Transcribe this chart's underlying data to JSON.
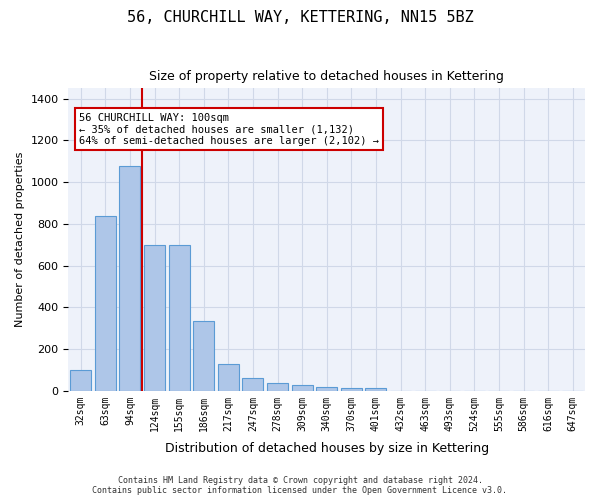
{
  "title": "56, CHURCHILL WAY, KETTERING, NN15 5BZ",
  "subtitle": "Size of property relative to detached houses in Kettering",
  "xlabel": "Distribution of detached houses by size in Kettering",
  "ylabel": "Number of detached properties",
  "bar_color": "#aec6e8",
  "bar_edge_color": "#5b9bd5",
  "grid_color": "#d0d8e8",
  "background_color": "#eef2fa",
  "categories": [
    "32sqm",
    "63sqm",
    "94sqm",
    "124sqm",
    "155sqm",
    "186sqm",
    "217sqm",
    "247sqm",
    "278sqm",
    "309sqm",
    "340sqm",
    "370sqm",
    "401sqm",
    "432sqm",
    "463sqm",
    "493sqm",
    "524sqm",
    "555sqm",
    "586sqm",
    "616sqm",
    "647sqm"
  ],
  "bar_values": [
    100,
    840,
    1080,
    698,
    698,
    335,
    130,
    60,
    35,
    30,
    20,
    15,
    15,
    0,
    0,
    0,
    0,
    0,
    0,
    0,
    0
  ],
  "ylim": [
    0,
    1450
  ],
  "yticks": [
    0,
    200,
    400,
    600,
    800,
    1000,
    1200,
    1400
  ],
  "property_size": "100sqm",
  "property_bin_index": 2,
  "vline_color": "#cc0000",
  "annotation_text": "56 CHURCHILL WAY: 100sqm\n← 35% of detached houses are smaller (1,132)\n64% of semi-detached houses are larger (2,102) →",
  "annotation_box_color": "#cc0000",
  "footer_line1": "Contains HM Land Registry data © Crown copyright and database right 2024.",
  "footer_line2": "Contains public sector information licensed under the Open Government Licence v3.0."
}
